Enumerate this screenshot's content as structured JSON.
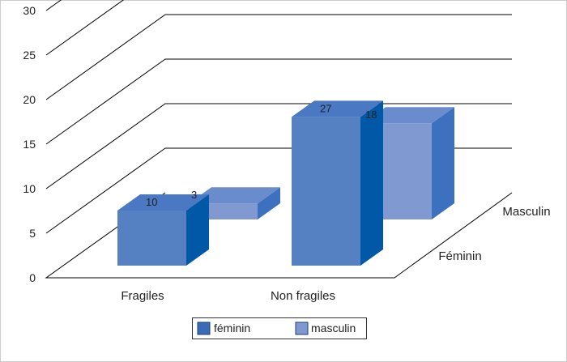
{
  "chart_data": {
    "type": "bar",
    "title": "",
    "xlabel": "",
    "ylabel": "",
    "ylim": [
      0,
      30
    ],
    "yticks": [
      "0",
      "5",
      "10",
      "15",
      "20",
      "25",
      "30"
    ],
    "categories": [
      "Fragiles",
      "Non fragiles"
    ],
    "depth_labels": [
      "Féminin",
      "Masculin"
    ],
    "grid": true,
    "legend_position": "bottom",
    "legend": [
      "féminin",
      "masculin"
    ],
    "series": [
      {
        "name": "féminin",
        "values": [
          10,
          27
        ],
        "labels": [
          "10",
          "27"
        ],
        "color": "#5580c2"
      },
      {
        "name": "masculin",
        "values": [
          3,
          18
        ],
        "labels": [
          "3",
          "18"
        ],
        "color": "#8199d1"
      }
    ]
  }
}
